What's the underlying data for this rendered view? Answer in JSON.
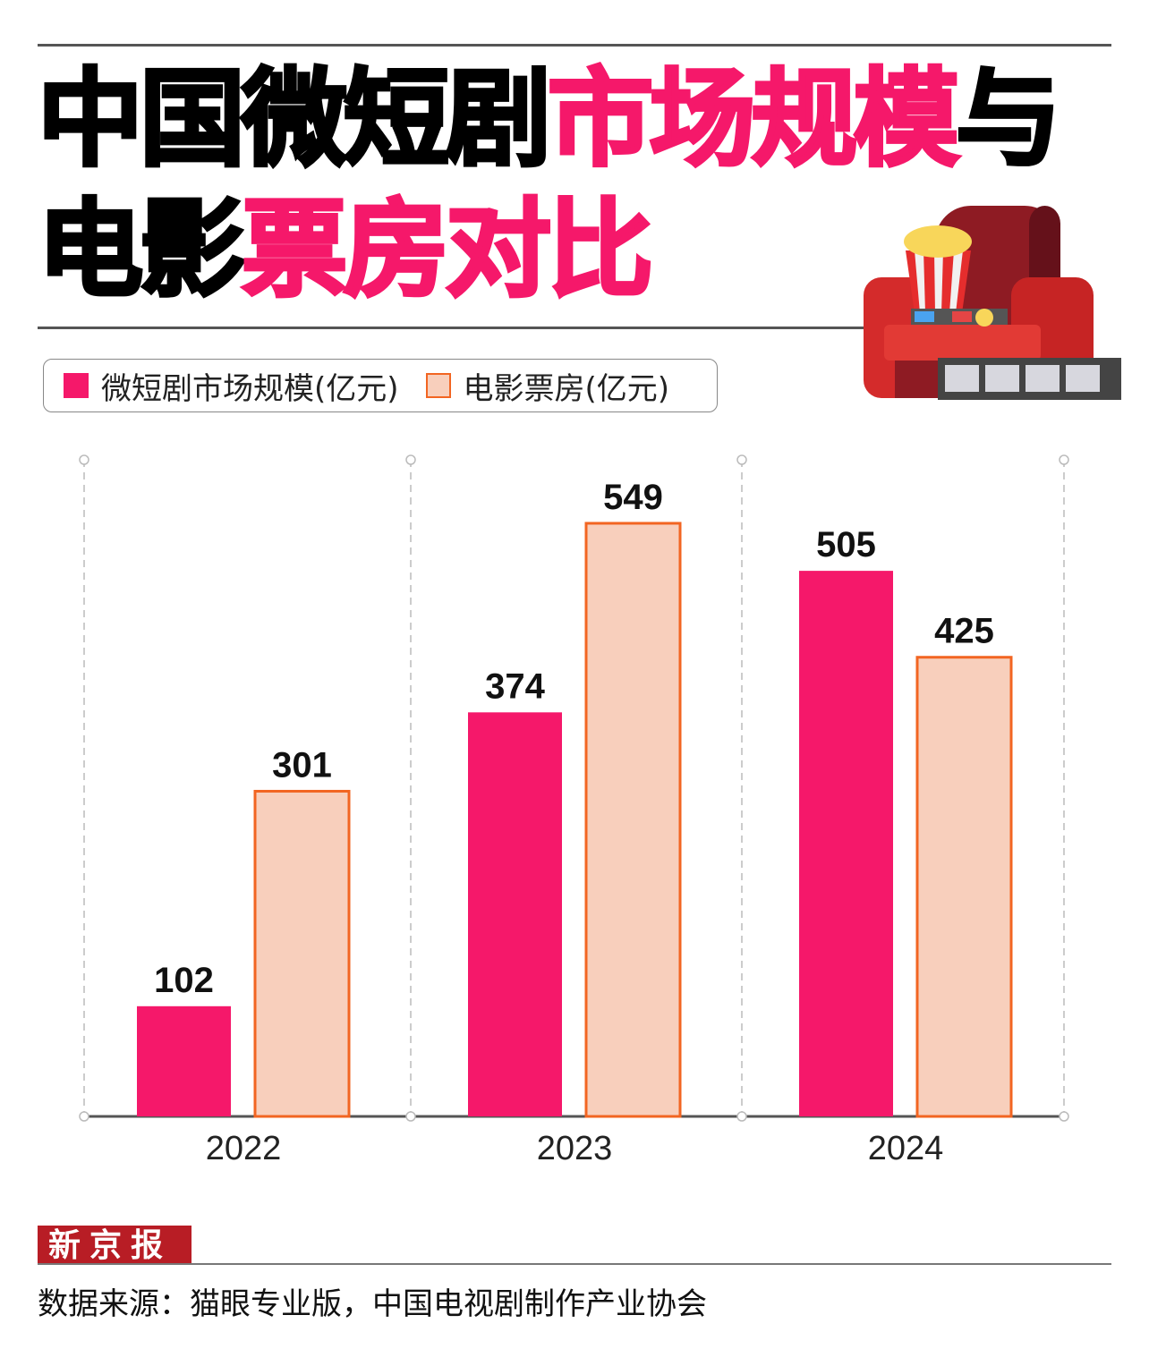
{
  "title": {
    "line1_black": "中国微短剧",
    "line1_pink": "市场规模",
    "line1_black2": "与",
    "line2_black": "电影",
    "line2_pink": "票房对比"
  },
  "colors": {
    "accent": "#f5186a",
    "box_fill": "#f8cfbc",
    "box_stroke": "#f26522"
  },
  "legend": [
    "微短剧市场规模(亿元)",
    "电影票房(亿元)"
  ],
  "chart_data": {
    "type": "bar",
    "title": "中国微短剧市场规模与电影票房对比",
    "categories": [
      "2022",
      "2023",
      "2024"
    ],
    "series": [
      {
        "name": "微短剧市场规模(亿元)",
        "values": [
          102,
          374,
          505
        ]
      },
      {
        "name": "电影票房(亿元)",
        "values": [
          301,
          549,
          425
        ]
      }
    ],
    "ylim": [
      0,
      608
    ],
    "xlabel": "",
    "ylabel": "",
    "legend_position": "top-left",
    "grid": "vertical dashed"
  },
  "footer": {
    "logo": "新京报",
    "source": "数据来源：猫眼专业版，中国电视剧制作产业协会"
  }
}
